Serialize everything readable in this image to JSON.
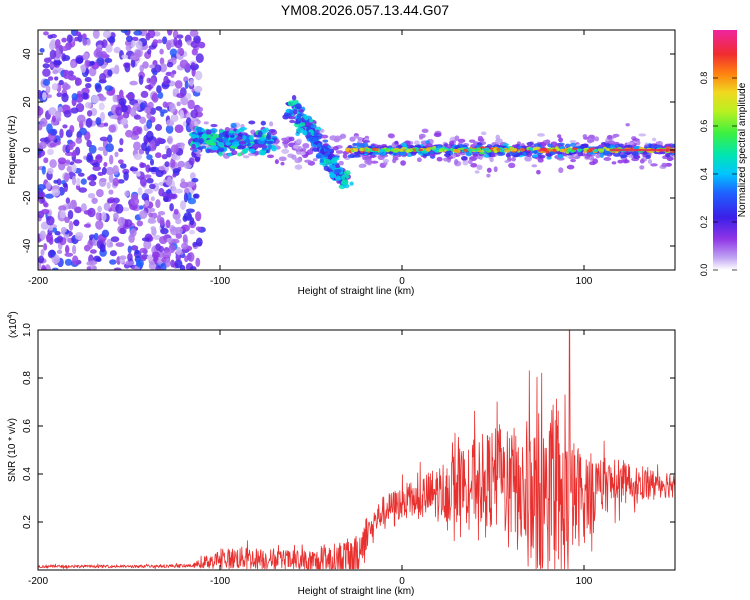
{
  "title": "YM08.2026.057.13.44.G07",
  "chart_data": [
    {
      "type": "heatmap",
      "title": "YM08.2026.057.13.44.G07",
      "xlabel": "Height of straight line (km)",
      "ylabel": "Frequency (Hz)",
      "xlim": [
        -200,
        150
      ],
      "ylim": [
        -50,
        50
      ],
      "xticks": [
        -200,
        -100,
        0,
        100
      ],
      "yticks": [
        -40,
        -20,
        0,
        20,
        40
      ],
      "colorbar": {
        "label": "Normalized spectral amplitude",
        "range": [
          0,
          1
        ],
        "ticks": [
          "0.0",
          "0.2",
          "0.4",
          "0.6",
          "0.8"
        ],
        "tick_values": [
          0,
          0.2,
          0.4,
          0.6,
          0.8
        ]
      },
      "features": [
        {
          "name": "noise-band",
          "x_range": [
            -200,
            -110
          ],
          "freq_range": [
            -50,
            50
          ],
          "amplitude": 0.2
        },
        {
          "name": "signal-trace-start",
          "x_range": [
            -115,
            -70
          ],
          "freq_center": 4,
          "amplitude": 0.4
        },
        {
          "name": "signal-arc",
          "points": [
            [
              -62,
              18
            ],
            [
              -55,
              12
            ],
            [
              -48,
              5
            ],
            [
              -42,
              -2
            ],
            [
              -36,
              -8
            ],
            [
              -31,
              -14
            ]
          ],
          "amplitude": 0.35
        },
        {
          "name": "stable-trace",
          "x_range": [
            -30,
            150
          ],
          "freq_center": 0,
          "amplitude_min": 0.4,
          "amplitude_max": 0.95
        }
      ]
    },
    {
      "type": "line",
      "xlabel": "Height of straight line (km)",
      "ylabel": "SNR (10 * v/v)",
      "yscale_label": "(x10",
      "yscale_exp": "4",
      "xlim": [
        -200,
        150
      ],
      "ylim": [
        0,
        1.0
      ],
      "xticks": [
        -200,
        -100,
        0,
        100
      ],
      "yticks": [
        0.2,
        0.4,
        0.6,
        0.8,
        1.0
      ],
      "ytick_labels": [
        "0.2",
        "0.4",
        "0.6",
        "0.8",
        "1.0"
      ],
      "color": "#e8302f",
      "envelope": {
        "x": [
          -200,
          -150,
          -115,
          -105,
          -90,
          -60,
          -45,
          -25,
          -20,
          -10,
          0,
          10,
          20,
          30,
          40,
          50,
          60,
          70,
          80,
          85,
          90,
          95,
          100,
          110,
          120,
          130,
          140,
          150
        ],
        "base": [
          0.015,
          0.015,
          0.018,
          0.04,
          0.05,
          0.04,
          0.03,
          0.06,
          0.15,
          0.25,
          0.28,
          0.3,
          0.32,
          0.35,
          0.37,
          0.38,
          0.36,
          0.3,
          0.25,
          0.2,
          0.25,
          0.3,
          0.32,
          0.35,
          0.36,
          0.36,
          0.36,
          0.36
        ],
        "spread": [
          0.01,
          0.01,
          0.012,
          0.06,
          0.08,
          0.07,
          0.1,
          0.14,
          0.12,
          0.1,
          0.12,
          0.15,
          0.2,
          0.25,
          0.3,
          0.35,
          0.4,
          0.55,
          0.6,
          0.65,
          0.55,
          0.4,
          0.3,
          0.2,
          0.15,
          0.12,
          0.1,
          0.1
        ]
      },
      "peak": {
        "x": 92,
        "y": 1.0
      }
    }
  ],
  "colors": {
    "trace": "#e8302f",
    "colormap": [
      "#ffffff",
      "#c1a6f2",
      "#8f35e6",
      "#4b1fe0",
      "#1f3cff",
      "#00b4ff",
      "#00e6c0",
      "#3cf05a",
      "#a8f020",
      "#f0e020",
      "#ff8a10",
      "#f0303c",
      "#f0249a"
    ]
  }
}
